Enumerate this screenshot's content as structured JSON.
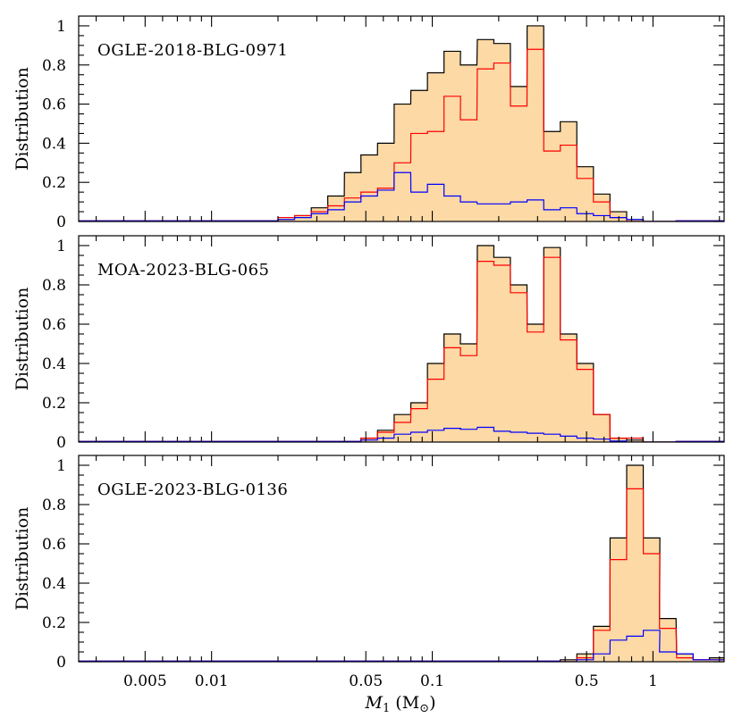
{
  "x_axis": {
    "label_main": "M",
    "label_sub": "1",
    "label_unit_open": " (M",
    "label_unit_sub": "⊙",
    "label_unit_close": ")",
    "ticks": [
      {
        "value": 0.005,
        "label": "0.005"
      },
      {
        "value": 0.01,
        "label": "0.01"
      },
      {
        "value": 0.05,
        "label": "0.05"
      },
      {
        "value": 0.1,
        "label": "0.1"
      },
      {
        "value": 0.5,
        "label": "0.5"
      },
      {
        "value": 1,
        "label": "1"
      }
    ]
  },
  "chart_data": [
    {
      "type": "bar",
      "title": "OGLE-2018-BLG-0971",
      "ylabel": "Distribution",
      "xscale": "log",
      "xlim": [
        0.0025,
        2.1
      ],
      "ylim": [
        0,
        1.05
      ],
      "yticks": [
        0,
        0.2,
        0.4,
        0.6,
        0.8,
        1
      ],
      "ytick_labels": [
        "0",
        "0.2",
        "0.4",
        "0.6",
        "0.8",
        "1"
      ],
      "bin_width_dex": 0.075,
      "bin_starts": [
        0.02,
        0.0238,
        0.0283,
        0.0336,
        0.04,
        0.0475,
        0.0565,
        0.0672,
        0.08,
        0.0951,
        0.113,
        0.134,
        0.16,
        0.19,
        0.226,
        0.269,
        0.32,
        0.38,
        0.452,
        0.537,
        0.639,
        0.76,
        0.904,
        1.07
      ],
      "series": [
        {
          "name": "total",
          "color": "#000000",
          "fill": "#fcd9a5",
          "values": [
            0.01,
            0.03,
            0.07,
            0.13,
            0.25,
            0.34,
            0.4,
            0.6,
            0.67,
            0.76,
            0.87,
            0.8,
            0.93,
            0.91,
            0.69,
            1.0,
            0.46,
            0.51,
            0.28,
            0.14,
            0.05,
            0.01,
            0.0,
            0.0
          ]
        },
        {
          "name": "red",
          "color": "#ff0000",
          "values": [
            0.02,
            0.03,
            0.05,
            0.08,
            0.12,
            0.15,
            0.17,
            0.3,
            0.45,
            0.46,
            0.64,
            0.52,
            0.78,
            0.81,
            0.59,
            0.88,
            0.36,
            0.39,
            0.22,
            0.1,
            0.02,
            0.0,
            0.0,
            0.0
          ]
        },
        {
          "name": "blue",
          "color": "#0000ff",
          "values": [
            0.01,
            0.02,
            0.04,
            0.06,
            0.1,
            0.13,
            0.16,
            0.25,
            0.15,
            0.19,
            0.13,
            0.1,
            0.09,
            0.09,
            0.1,
            0.11,
            0.06,
            0.07,
            0.04,
            0.03,
            0.02,
            0.01,
            0.0,
            0.0
          ]
        }
      ]
    },
    {
      "type": "bar",
      "title": "MOA-2023-BLG-065",
      "ylabel": "Distribution",
      "xscale": "log",
      "xlim": [
        0.0025,
        2.1
      ],
      "ylim": [
        0,
        1.05
      ],
      "yticks": [
        0,
        0.2,
        0.4,
        0.6,
        0.8,
        1
      ],
      "ytick_labels": [
        "0",
        "0.2",
        "0.4",
        "0.6",
        "0.8",
        "1"
      ],
      "bin_width_dex": 0.075,
      "bin_starts": [
        0.0475,
        0.0565,
        0.0672,
        0.08,
        0.0951,
        0.113,
        0.134,
        0.16,
        0.19,
        0.226,
        0.269,
        0.32,
        0.38,
        0.452,
        0.537,
        0.639,
        0.76,
        0.904,
        1.07
      ],
      "series": [
        {
          "name": "total",
          "color": "#000000",
          "fill": "#fcd9a5",
          "values": [
            0.02,
            0.06,
            0.14,
            0.2,
            0.4,
            0.55,
            0.5,
            1.0,
            0.94,
            0.8,
            0.6,
            0.99,
            0.55,
            0.4,
            0.14,
            0.02,
            0.01,
            0.0,
            0.0
          ]
        },
        {
          "name": "red",
          "color": "#ff0000",
          "values": [
            0.02,
            0.05,
            0.1,
            0.17,
            0.32,
            0.48,
            0.44,
            0.92,
            0.9,
            0.76,
            0.56,
            0.94,
            0.52,
            0.37,
            0.14,
            0.02,
            0.02,
            0.0,
            0.0
          ]
        },
        {
          "name": "blue",
          "color": "#0000ff",
          "values": [
            0.01,
            0.02,
            0.04,
            0.05,
            0.06,
            0.07,
            0.065,
            0.075,
            0.055,
            0.05,
            0.045,
            0.04,
            0.03,
            0.02,
            0.015,
            0.005,
            0.0,
            0.0,
            0.0
          ]
        }
      ]
    },
    {
      "type": "bar",
      "title": "OGLE-2023-BLG-0136",
      "ylabel": "Distribution",
      "xscale": "log",
      "xlim": [
        0.0025,
        2.1
      ],
      "ylim": [
        0,
        1.05
      ],
      "yticks": [
        0,
        0.2,
        0.4,
        0.6,
        0.8,
        1
      ],
      "ytick_labels": [
        "0",
        "0.2",
        "0.4",
        "0.6",
        "0.8",
        "1"
      ],
      "bin_width_dex": 0.075,
      "bin_starts": [
        0.38,
        0.452,
        0.537,
        0.639,
        0.76,
        0.904,
        1.07,
        1.28,
        1.52,
        1.8
      ],
      "series": [
        {
          "name": "total",
          "color": "#000000",
          "fill": "#fcd9a5",
          "values": [
            0.01,
            0.04,
            0.18,
            0.63,
            1.0,
            0.63,
            0.22,
            0.04,
            0.01,
            0.02
          ]
        },
        {
          "name": "red",
          "color": "#ff0000",
          "values": [
            0.0,
            0.02,
            0.16,
            0.52,
            0.88,
            0.55,
            0.17,
            0.02,
            0.01,
            0.01
          ]
        },
        {
          "name": "blue",
          "color": "#0000ff",
          "values": [
            0.0,
            0.01,
            0.04,
            0.11,
            0.13,
            0.16,
            0.05,
            0.04,
            0.01,
            0.01
          ]
        }
      ]
    }
  ]
}
